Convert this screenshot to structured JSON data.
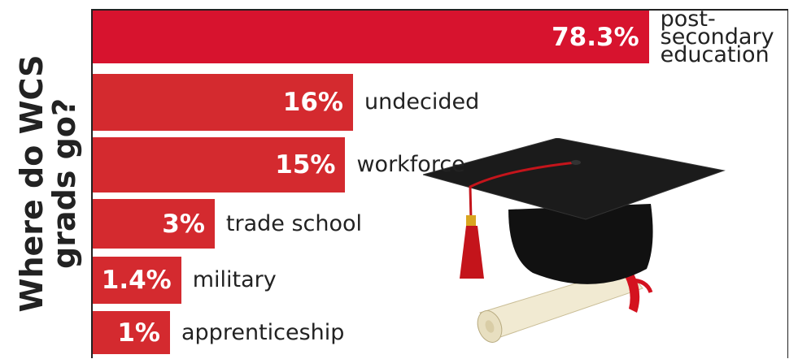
{
  "chart_data": {
    "type": "bar",
    "orientation": "horizontal",
    "title": "Where do WCS\ngrads go?",
    "categories": [
      "post-\nsecondary\neducation",
      "undecided",
      "workforce",
      "trade school",
      "military",
      "apprenticeship"
    ],
    "values": [
      78.3,
      16,
      15,
      3,
      1.4,
      1
    ],
    "value_labels": [
      "78.3%",
      "16%",
      "15%",
      "3%",
      "1.4%",
      "1%"
    ],
    "colors": [
      "#d7132e",
      "#d42a2f",
      "#d42a2f",
      "#d42a2f",
      "#d42a2f",
      "#d42a2f"
    ]
  }
}
